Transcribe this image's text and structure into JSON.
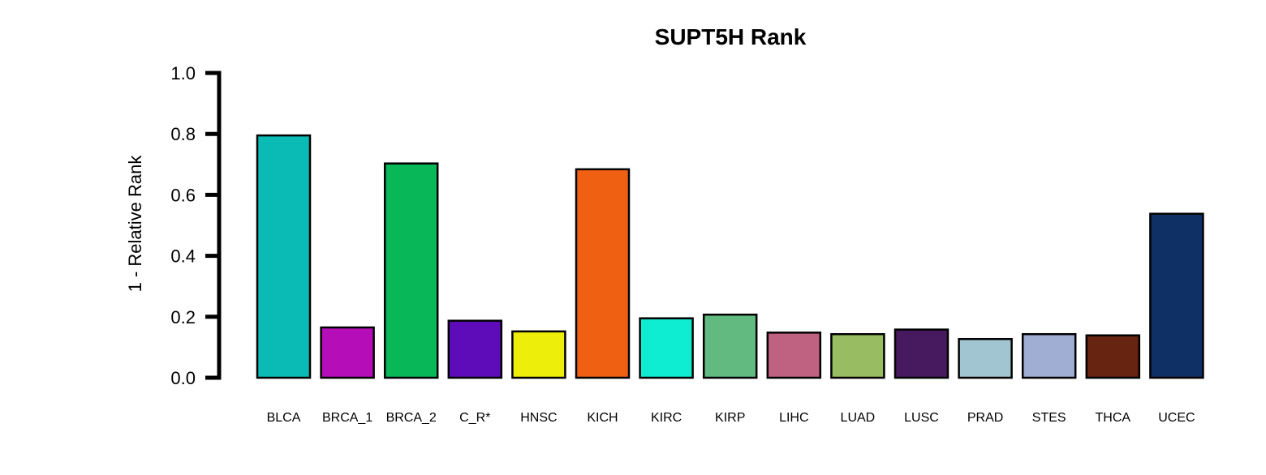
{
  "chart_data": {
    "type": "bar",
    "title": "SUPT5H Rank",
    "ylabel": "1 - Relative Rank",
    "xlabel": "",
    "ylim": [
      0,
      1
    ],
    "yticks": [
      "0.0",
      "0.2",
      "0.4",
      "0.6",
      "0.8",
      "1.0"
    ],
    "categories": [
      "BLCA",
      "BRCA_1",
      "BRCA_2",
      "C_R*",
      "HNSC",
      "KICH",
      "KIRC",
      "KIRP",
      "LIHC",
      "LUAD",
      "LUSC",
      "PRAD",
      "STES",
      "THCA",
      "UCEC"
    ],
    "values": [
      0.795,
      0.165,
      0.703,
      0.187,
      0.152,
      0.684,
      0.195,
      0.207,
      0.148,
      0.143,
      0.158,
      0.127,
      0.143,
      0.139,
      0.538
    ],
    "colors": [
      "#0ABBB5",
      "#B50DB8",
      "#08B858",
      "#5E0BBA",
      "#EEEE0B",
      "#F06012",
      "#0EEDD1",
      "#62BA80",
      "#BF6181",
      "#98BC61",
      "#471A5F",
      "#A2C5D2",
      "#A0AED3",
      "#672410",
      "#0E3065"
    ],
    "grid": false,
    "legend": "none"
  }
}
